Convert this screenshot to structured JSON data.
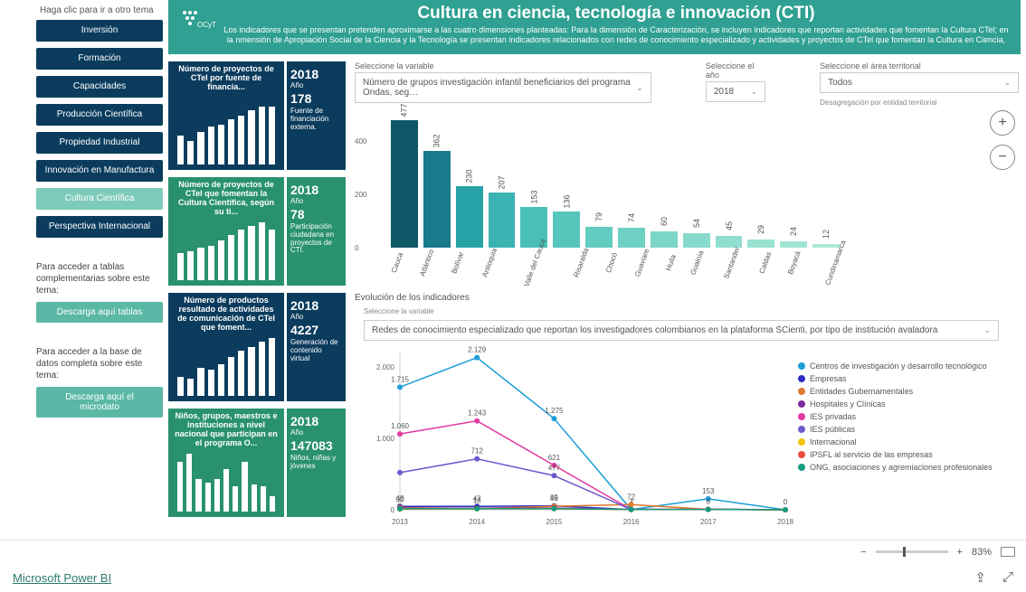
{
  "nav": {
    "title": "Haga clic para ir a otro tema",
    "items": [
      {
        "label": "Inversión",
        "style": "dark"
      },
      {
        "label": "Formación",
        "style": "dark"
      },
      {
        "label": "Capacidades",
        "style": "dark"
      },
      {
        "label": "Producción Científica",
        "style": "dark"
      },
      {
        "label": "Propiedad Industrial",
        "style": "dark"
      },
      {
        "label": "Innovación en Manufactura",
        "style": "dark"
      },
      {
        "label": "Cultura Científica",
        "style": "light"
      },
      {
        "label": "Perspectiva Internacional",
        "style": "dark"
      }
    ],
    "dl1_text": "Para acceder a tablas complementarias sobre este tema:",
    "dl1_btn": "Descarga aquí tablas",
    "dl2_text": "Para acceder a la base de datos completa sobre este tema:",
    "dl2_btn": "Descarga aquí el microdato"
  },
  "header": {
    "title": "Cultura en ciencia, tecnología e innovación (CTI)",
    "subtitle": "Los indicadores que se presentan pretenden aproximarse a las cuatro dimensiones planteadas: Para la dimensión de Caracterización, se incluyen indicadores que reportan actividades que fomentan la Cultura CTel; en la nmensión de Apropiación Social de la Ciencia y la Tecnología se presentan indicadores relacionados con redes de conocimiento especializado y actividades y proyectos de CTel que fomentan la Cultura en Ciencia,"
  },
  "tiles": [
    {
      "color": "#0b3c5d",
      "title": "Número de proyectos de CTeI por fuente de financia...",
      "bars": [
        32,
        26,
        36,
        42,
        44,
        50,
        54,
        60,
        64,
        64
      ],
      "year": "2018",
      "anio": "Año",
      "value": "178",
      "desc": "Fuente de financiación externa."
    },
    {
      "color": "#29926c",
      "title": "Número de proyectos de CTeI que fomentan la Cultura Científica, según su ti...",
      "bars": [
        30,
        32,
        36,
        38,
        44,
        50,
        56,
        60,
        64,
        56
      ],
      "year": "2018",
      "anio": "Año",
      "value": "78",
      "desc": "Participación ciudadana en proyectos de CTI."
    },
    {
      "color": "#0b3c5d",
      "title": "Número de productos resultado de actividades de comunicación de CTeI que foment...",
      "bars": [
        20,
        18,
        30,
        28,
        34,
        42,
        48,
        52,
        58,
        62
      ],
      "year": "2018",
      "anio": "Año",
      "value": "4227",
      "desc": "Generación de contenido virtual"
    },
    {
      "color": "#29926c",
      "title": "Niños, grupos, maestros e instituciones a nivel nacional que participan en el programa O...",
      "bars": [
        52,
        60,
        34,
        30,
        34,
        44,
        26,
        52,
        28,
        26,
        16
      ],
      "year": "2018",
      "anio": "Año",
      "value": "147083",
      "desc": "Niños, niñas y jóvenes"
    }
  ],
  "selectors": {
    "var_label": "Seleccione la variable",
    "var_value": "Número de grupos investigación infantil beneficiarios del programa Ondas, seg…",
    "year_label": "Seleccione el año",
    "year_value": "2018",
    "area_label": "Seleccione el  área territorial",
    "area_value": "Todos",
    "desag": "Desagregación por entidad territorial"
  },
  "zoom": {
    "plus": "+",
    "minus": "−"
  },
  "bar_chart": {
    "ylim": [
      0,
      500
    ],
    "yticks": [
      0,
      200,
      400
    ],
    "colors": [
      "#0f5868",
      "#187a8a",
      "#27a2a7",
      "#3bb3b2",
      "#49bfb8",
      "#56c6bc",
      "#62ccc0",
      "#6fd1c4",
      "#7bd6c8",
      "#86dacb",
      "#90decf",
      "#99e1d1",
      "#a2e4d4",
      "#ace7d7",
      "#b5ead9"
    ],
    "items": [
      {
        "cat": "Cauca",
        "val": 477
      },
      {
        "cat": "Atlántico",
        "val": 362
      },
      {
        "cat": "Bolívar",
        "val": 230
      },
      {
        "cat": "Antioquia",
        "val": 207
      },
      {
        "cat": "Valle del Cauca",
        "val": 153
      },
      {
        "cat": "Risaralda",
        "val": 136
      },
      {
        "cat": "Chocó",
        "val": 79
      },
      {
        "cat": "Guaviare",
        "val": 74
      },
      {
        "cat": "Huila",
        "val": 60
      },
      {
        "cat": "Guainía",
        "val": 54
      },
      {
        "cat": "Santander",
        "val": 45
      },
      {
        "cat": "Caldas",
        "val": 29
      },
      {
        "cat": "Boyacá",
        "val": 24
      },
      {
        "cat": "Cundinamarca",
        "val": 12
      }
    ]
  },
  "evolution": {
    "title": "Evolución de los indicadores",
    "sub": "Seleccione la variable",
    "sel_value": "Redes de conocimiento especializado que reportan los investigadores colombianos en la plataforma SCienti, por tipo de institución avaladora",
    "xvals": [
      2013,
      2014,
      2015,
      2016,
      2017,
      2018
    ],
    "ylim": [
      0,
      2200
    ],
    "yticks": [
      0,
      1000,
      2000
    ],
    "series": [
      {
        "name": "Centros de investigación y desarrollo tecnológico",
        "color": "#1b9ed8",
        "vals": [
          1715,
          2129,
          1275,
          3,
          153,
          0
        ],
        "labels": [
          "1.715",
          "2.129",
          "1.275",
          "3",
          "153",
          "0"
        ]
      },
      {
        "name": "Empresas",
        "color": "#2d2dbf",
        "vals": [
          48,
          47,
          55,
          3,
          6,
          0
        ],
        "labels": [
          "48",
          "47",
          "55",
          "",
          "6",
          ""
        ]
      },
      {
        "name": "Entidades Gubernamentales",
        "color": "#e07b2e",
        "vals": [
          30,
          18,
          49,
          72,
          6,
          0
        ],
        "labels": [
          "30",
          "18",
          "49",
          "72",
          "",
          ""
        ]
      },
      {
        "name": "Hospitales y Clínicas",
        "color": "#7b2d9e",
        "vals": [
          20,
          22,
          24,
          5,
          4,
          0
        ],
        "labels": [
          "",
          "",
          "",
          "",
          "",
          ""
        ]
      },
      {
        "name": "IES privadas",
        "color": "#e23aa0",
        "vals": [
          1060,
          1243,
          621,
          3,
          8,
          0
        ],
        "labels": [
          "1.060",
          "1.243",
          "621",
          "",
          "",
          ""
        ]
      },
      {
        "name": "IES públicas",
        "color": "#6a5acd",
        "vals": [
          520,
          712,
          477,
          3,
          6,
          0
        ],
        "labels": [
          "",
          "712",
          "477",
          "",
          "",
          ""
        ]
      },
      {
        "name": "Internacional",
        "color": "#f1c40f",
        "vals": [
          10,
          12,
          14,
          3,
          4,
          0
        ],
        "labels": [
          "",
          "",
          "",
          "",
          "",
          ""
        ]
      },
      {
        "name": "IPSFL al servicio de las empresas",
        "color": "#e74c3c",
        "vals": [
          14,
          16,
          18,
          5,
          5,
          0
        ],
        "labels": [
          "",
          "",
          "",
          "",
          "",
          ""
        ]
      },
      {
        "name": "ONG, asociaciones y agremiaciones profesionales",
        "color": "#149b7e",
        "vals": [
          12,
          14,
          15,
          4,
          5,
          0
        ],
        "labels": [
          "",
          "",
          "",
          "",
          "",
          ""
        ]
      }
    ]
  },
  "footer": {
    "minus": "−",
    "plus": "+",
    "zoom": "83%",
    "brand": "Microsoft Power BI"
  }
}
